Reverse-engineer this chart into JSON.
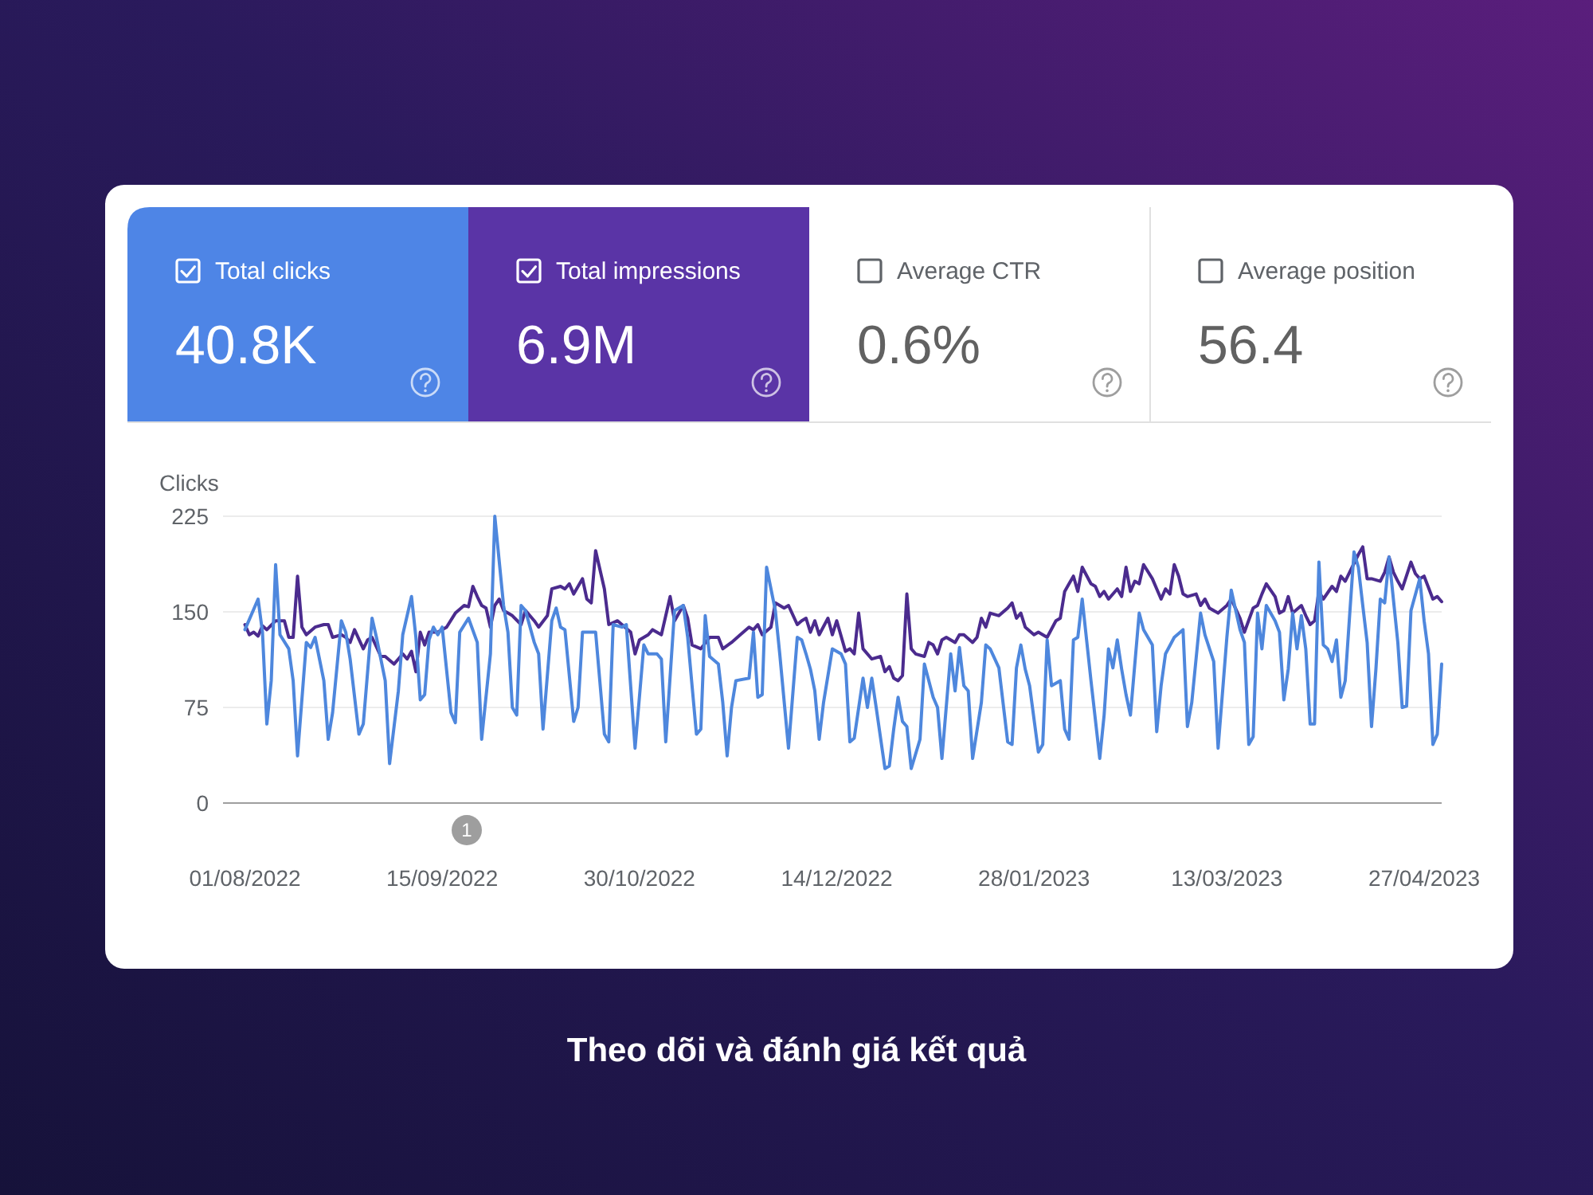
{
  "chart_data": [
    {
      "type": "other",
      "annotations": [
        "Total clicks",
        "40.8K",
        "Total impressions",
        "6.9M",
        "Average CTR",
        "0.6%",
        "Average position",
        "56.4"
      ]
    },
    {
      "type": "line",
      "ylabel": "Clicks",
      "xlim": [
        "2022-07-27",
        "2023-05-01"
      ],
      "xticks": [
        {
          "value": "2022-08-01",
          "label": "01/08/2022"
        },
        {
          "value": "2022-09-15",
          "label": "15/09/2022"
        },
        {
          "value": "2022-10-30",
          "label": "30/10/2022"
        },
        {
          "value": "2022-12-14",
          "label": "14/12/2022"
        },
        {
          "value": "2023-01-28",
          "label": "28/01/2023"
        },
        {
          "value": "2023-03-13",
          "label": "13/03/2023"
        },
        {
          "value": "2023-04-27",
          "label": "27/04/2023"
        }
      ],
      "ylim": [
        0,
        225
      ],
      "yticks": [
        0,
        75,
        150,
        225
      ],
      "grid": "y",
      "series": [
        {
          "color": "#4e87dd",
          "x": [
            "2022-08-01",
            "2022-08-04",
            "2022-08-05",
            "2022-08-06",
            "2022-08-07",
            "2022-08-08",
            "2022-08-09",
            "2022-08-11",
            "2022-08-12",
            "2022-08-13",
            "2022-08-15",
            "2022-08-16",
            "2022-08-17",
            "2022-08-19",
            "2022-08-20",
            "2022-08-21",
            "2022-08-23",
            "2022-08-24",
            "2022-08-25",
            "2022-08-27",
            "2022-08-28",
            "2022-08-30",
            "2022-08-31",
            "2022-09-02",
            "2022-09-03",
            "2022-09-05",
            "2022-09-06",
            "2022-09-08",
            "2022-09-09",
            "2022-09-10",
            "2022-09-11",
            "2022-09-12",
            "2022-09-13",
            "2022-09-14",
            "2022-09-15",
            "2022-09-17",
            "2022-09-18",
            "2022-09-19",
            "2022-09-21",
            "2022-09-23",
            "2022-09-24",
            "2022-09-26",
            "2022-09-27",
            "2022-09-29",
            "2022-09-30",
            "2022-10-01",
            "2022-10-02",
            "2022-10-03",
            "2022-10-04",
            "2022-10-06",
            "2022-10-07",
            "2022-10-08",
            "2022-10-10",
            "2022-10-11",
            "2022-10-12",
            "2022-10-13",
            "2022-10-15",
            "2022-10-16",
            "2022-10-17",
            "2022-10-20",
            "2022-10-22",
            "2022-10-23",
            "2022-10-24",
            "2022-10-26",
            "2022-10-27",
            "2022-10-29",
            "2022-10-31",
            "2022-11-01",
            "2022-11-03",
            "2022-11-04",
            "2022-11-05",
            "2022-11-07",
            "2022-11-09",
            "2022-11-10",
            "2022-11-12",
            "2022-11-13",
            "2022-11-14",
            "2022-11-15",
            "2022-11-17",
            "2022-11-18",
            "2022-11-19",
            "2022-11-20",
            "2022-11-21",
            "2022-11-24",
            "2022-11-25",
            "2022-11-26",
            "2022-11-27",
            "2022-11-28",
            "2022-11-30",
            "2022-12-01",
            "2022-12-03",
            "2022-12-05",
            "2022-12-06",
            "2022-12-07",
            "2022-12-08",
            "2022-12-09",
            "2022-12-10",
            "2022-12-11",
            "2022-12-13",
            "2022-12-15",
            "2022-12-16",
            "2022-12-17",
            "2022-12-18",
            "2022-12-20",
            "2022-12-21",
            "2022-12-22",
            "2022-12-23",
            "2022-12-25",
            "2022-12-26",
            "2022-12-27",
            "2022-12-28",
            "2022-12-29",
            "2022-12-30",
            "2022-12-31",
            "2023-01-02",
            "2023-01-03",
            "2023-01-05",
            "2023-01-06",
            "2023-01-07",
            "2023-01-09",
            "2023-01-10",
            "2023-01-11",
            "2023-01-12",
            "2023-01-13",
            "2023-01-14",
            "2023-01-16",
            "2023-01-17",
            "2023-01-18",
            "2023-01-20",
            "2023-01-22",
            "2023-01-23",
            "2023-01-24",
            "2023-01-25",
            "2023-01-26",
            "2023-01-27",
            "2023-01-29",
            "2023-01-30",
            "2023-01-31",
            "2023-02-01",
            "2023-02-03",
            "2023-02-04",
            "2023-02-05",
            "2023-02-06",
            "2023-02-07",
            "2023-02-08",
            "2023-02-10",
            "2023-02-12",
            "2023-02-13",
            "2023-02-14",
            "2023-02-15",
            "2023-02-16",
            "2023-02-17",
            "2023-02-18",
            "2023-02-19",
            "2023-02-21",
            "2023-02-22",
            "2023-02-24",
            "2023-02-25",
            "2023-02-26",
            "2023-02-27",
            "2023-03-01",
            "2023-03-03",
            "2023-03-04",
            "2023-03-05",
            "2023-03-07",
            "2023-03-08",
            "2023-03-10",
            "2023-03-11",
            "2023-03-13",
            "2023-03-14",
            "2023-03-16",
            "2023-03-17",
            "2023-03-18",
            "2023-03-19",
            "2023-03-20",
            "2023-03-21",
            "2023-03-22",
            "2023-03-24",
            "2023-03-25",
            "2023-03-26",
            "2023-03-27",
            "2023-03-28",
            "2023-03-29",
            "2023-03-30",
            "2023-03-31",
            "2023-04-01",
            "2023-04-02",
            "2023-04-03",
            "2023-04-04",
            "2023-04-05",
            "2023-04-06",
            "2023-04-07",
            "2023-04-08",
            "2023-04-09",
            "2023-04-10",
            "2023-04-11",
            "2023-04-12",
            "2023-04-13",
            "2023-04-14",
            "2023-04-15",
            "2023-04-16",
            "2023-04-17",
            "2023-04-18",
            "2023-04-19",
            "2023-04-21",
            "2023-04-22",
            "2023-04-23",
            "2023-04-24",
            "2023-04-26",
            "2023-04-27",
            "2023-04-28",
            "2023-04-29",
            "2023-04-30",
            "2023-05-01"
          ],
          "values": [
            136,
            160,
            134,
            62,
            96,
            187,
            132,
            121,
            96,
            37,
            126,
            122,
            130,
            96,
            50,
            71,
            143,
            134,
            113,
            54,
            62,
            145,
            130,
            96,
            31,
            88,
            132,
            162,
            130,
            81,
            85,
            128,
            138,
            132,
            138,
            71,
            63,
            134,
            145,
            126,
            50,
            117,
            225,
            155,
            134,
            75,
            69,
            155,
            151,
            126,
            117,
            58,
            143,
            153,
            138,
            136,
            64,
            75,
            134,
            134,
            54,
            48,
            140,
            138,
            140,
            43,
            124,
            117,
            117,
            113,
            48,
            151,
            155,
            130,
            54,
            58,
            147,
            115,
            109,
            79,
            37,
            75,
            96,
            98,
            134,
            83,
            85,
            185,
            151,
            117,
            43,
            130,
            128,
            117,
            105,
            88,
            50,
            79,
            121,
            117,
            109,
            48,
            51,
            98,
            75,
            98,
            75,
            27,
            29,
            58,
            83,
            64,
            60,
            27,
            50,
            109,
            83,
            75,
            35,
            117,
            88,
            122,
            92,
            88,
            35,
            79,
            124,
            121,
            106,
            48,
            46,
            106,
            124,
            105,
            92,
            40,
            46,
            128,
            92,
            96,
            58,
            50,
            128,
            130,
            160,
            96,
            35,
            69,
            121,
            106,
            128,
            105,
            85,
            69,
            149,
            136,
            124,
            56,
            92,
            117,
            130,
            136,
            60,
            79,
            149,
            132,
            111,
            43,
            130,
            167,
            136,
            126,
            46,
            52,
            149,
            121,
            155,
            143,
            134,
            81,
            105,
            149,
            121,
            147,
            121,
            62,
            62,
            189,
            124,
            121,
            111,
            128,
            83,
            96,
            147,
            197,
            185,
            155,
            126,
            60,
            105,
            160,
            157,
            193,
            126,
            75,
            76,
            151,
            176,
            143,
            117,
            46,
            54,
            109
          ]
        },
        {
          "color": "#4b2b8e",
          "x": [
            "2022-08-01",
            "2022-08-02",
            "2022-08-03",
            "2022-08-04",
            "2022-08-05",
            "2022-08-06",
            "2022-08-08",
            "2022-08-10",
            "2022-08-11",
            "2022-08-12",
            "2022-08-13",
            "2022-08-14",
            "2022-08-15",
            "2022-08-17",
            "2022-08-19",
            "2022-08-20",
            "2022-08-21",
            "2022-08-23",
            "2022-08-24",
            "2022-08-25",
            "2022-08-26",
            "2022-08-28",
            "2022-08-29",
            "2022-08-30",
            "2022-09-01",
            "2022-09-02",
            "2022-09-04",
            "2022-09-05",
            "2022-09-06",
            "2022-09-07",
            "2022-09-08",
            "2022-09-09",
            "2022-09-10",
            "2022-09-11",
            "2022-09-12",
            "2022-09-14",
            "2022-09-16",
            "2022-09-18",
            "2022-09-20",
            "2022-09-21",
            "2022-09-22",
            "2022-09-23",
            "2022-09-24",
            "2022-09-25",
            "2022-09-26",
            "2022-09-27",
            "2022-09-28",
            "2022-09-29",
            "2022-09-30",
            "2022-10-01",
            "2022-10-03",
            "2022-10-04",
            "2022-10-06",
            "2022-10-07",
            "2022-10-09",
            "2022-10-10",
            "2022-10-12",
            "2022-10-13",
            "2022-10-14",
            "2022-10-15",
            "2022-10-17",
            "2022-10-18",
            "2022-10-19",
            "2022-10-20",
            "2022-10-22",
            "2022-10-23",
            "2022-10-25",
            "2022-10-26",
            "2022-10-28",
            "2022-10-29",
            "2022-10-30",
            "2022-11-01",
            "2022-11-02",
            "2022-11-04",
            "2022-11-06",
            "2022-11-07",
            "2022-11-09",
            "2022-11-10",
            "2022-11-11",
            "2022-11-13",
            "2022-11-15",
            "2022-11-17",
            "2022-11-18",
            "2022-11-20",
            "2022-11-22",
            "2022-11-24",
            "2022-11-25",
            "2022-11-26",
            "2022-11-27",
            "2022-11-29",
            "2022-11-30",
            "2022-12-02",
            "2022-12-03",
            "2022-12-05",
            "2022-12-06",
            "2022-12-07",
            "2022-12-08",
            "2022-12-09",
            "2022-12-10",
            "2022-12-12",
            "2022-12-13",
            "2022-12-14",
            "2022-12-16",
            "2022-12-17",
            "2022-12-18",
            "2022-12-19",
            "2022-12-20",
            "2022-12-22",
            "2022-12-24",
            "2022-12-25",
            "2022-12-26",
            "2022-12-27",
            "2022-12-28",
            "2022-12-29",
            "2022-12-30",
            "2022-12-31",
            "2023-01-01",
            "2023-01-03",
            "2023-01-04",
            "2023-01-05",
            "2023-01-06",
            "2023-01-07",
            "2023-01-08",
            "2023-01-10",
            "2023-01-11",
            "2023-01-12",
            "2023-01-14",
            "2023-01-15",
            "2023-01-16",
            "2023-01-17",
            "2023-01-18",
            "2023-01-20",
            "2023-01-22",
            "2023-01-23",
            "2023-01-24",
            "2023-01-25",
            "2023-01-26",
            "2023-01-28",
            "2023-01-29",
            "2023-01-30",
            "2023-01-31",
            "2023-02-02",
            "2023-02-03",
            "2023-02-04",
            "2023-02-05",
            "2023-02-06",
            "2023-02-07",
            "2023-02-08",
            "2023-02-10",
            "2023-02-11",
            "2023-02-12",
            "2023-02-13",
            "2023-02-14",
            "2023-02-16",
            "2023-02-17",
            "2023-02-18",
            "2023-02-19",
            "2023-02-20",
            "2023-02-21",
            "2023-02-22",
            "2023-02-24",
            "2023-02-25",
            "2023-02-26",
            "2023-02-27",
            "2023-02-28",
            "2023-03-01",
            "2023-03-02",
            "2023-03-03",
            "2023-03-04",
            "2023-03-06",
            "2023-03-07",
            "2023-03-08",
            "2023-03-09",
            "2023-03-11",
            "2023-03-13",
            "2023-03-14",
            "2023-03-16",
            "2023-03-17",
            "2023-03-19",
            "2023-03-20",
            "2023-03-21",
            "2023-03-22",
            "2023-03-24",
            "2023-03-25",
            "2023-03-26",
            "2023-03-27",
            "2023-03-28",
            "2023-03-30",
            "2023-03-31",
            "2023-04-01",
            "2023-04-02",
            "2023-04-03",
            "2023-04-04",
            "2023-04-06",
            "2023-04-07",
            "2023-04-08",
            "2023-04-09",
            "2023-04-10",
            "2023-04-12",
            "2023-04-13",
            "2023-04-14",
            "2023-04-15",
            "2023-04-17",
            "2023-04-18",
            "2023-04-19",
            "2023-04-20",
            "2023-04-21",
            "2023-04-22",
            "2023-04-24",
            "2023-04-25",
            "2023-04-26",
            "2023-04-27",
            "2023-04-29",
            "2023-04-30",
            "2023-05-01"
          ],
          "values": [
            140,
            132,
            134,
            131,
            139,
            136,
            143,
            143,
            130,
            130,
            178,
            138,
            132,
            138,
            140,
            140,
            130,
            132,
            130,
            126,
            136,
            121,
            128,
            130,
            115,
            115,
            109,
            113,
            117,
            113,
            119,
            103,
            134,
            124,
            134,
            134,
            138,
            149,
            155,
            154,
            170,
            162,
            155,
            153,
            138,
            155,
            160,
            151,
            149,
            147,
            140,
            151,
            143,
            138,
            147,
            168,
            170,
            168,
            172,
            164,
            176,
            160,
            157,
            198,
            168,
            140,
            143,
            140,
            134,
            117,
            128,
            132,
            136,
            132,
            162,
            143,
            155,
            145,
            124,
            121,
            130,
            130,
            121,
            126,
            132,
            138,
            136,
            140,
            132,
            138,
            157,
            153,
            155,
            140,
            143,
            145,
            134,
            143,
            132,
            145,
            132,
            143,
            119,
            121,
            117,
            149,
            121,
            113,
            115,
            103,
            107,
            98,
            96,
            100,
            164,
            121,
            117,
            115,
            126,
            124,
            117,
            128,
            130,
            126,
            132,
            132,
            126,
            130,
            145,
            138,
            149,
            147,
            153,
            157,
            145,
            149,
            138,
            132,
            134,
            132,
            130,
            143,
            145,
            166,
            172,
            178,
            166,
            185,
            172,
            170,
            162,
            166,
            160,
            168,
            162,
            185,
            166,
            174,
            172,
            187,
            176,
            168,
            160,
            168,
            164,
            187,
            178,
            164,
            162,
            164,
            155,
            160,
            153,
            149,
            155,
            160,
            145,
            134,
            153,
            155,
            164,
            172,
            162,
            149,
            151,
            162,
            149,
            155,
            147,
            140,
            143,
            166,
            160,
            170,
            166,
            178,
            174,
            181,
            195,
            201,
            176,
            176,
            174,
            181,
            193,
            181,
            174,
            168,
            189,
            180,
            176,
            178,
            160,
            162,
            158
          ]
        }
      ],
      "annotations": [
        "1",
        "Theo dõi và đánh giá kết quả"
      ]
    }
  ]
}
